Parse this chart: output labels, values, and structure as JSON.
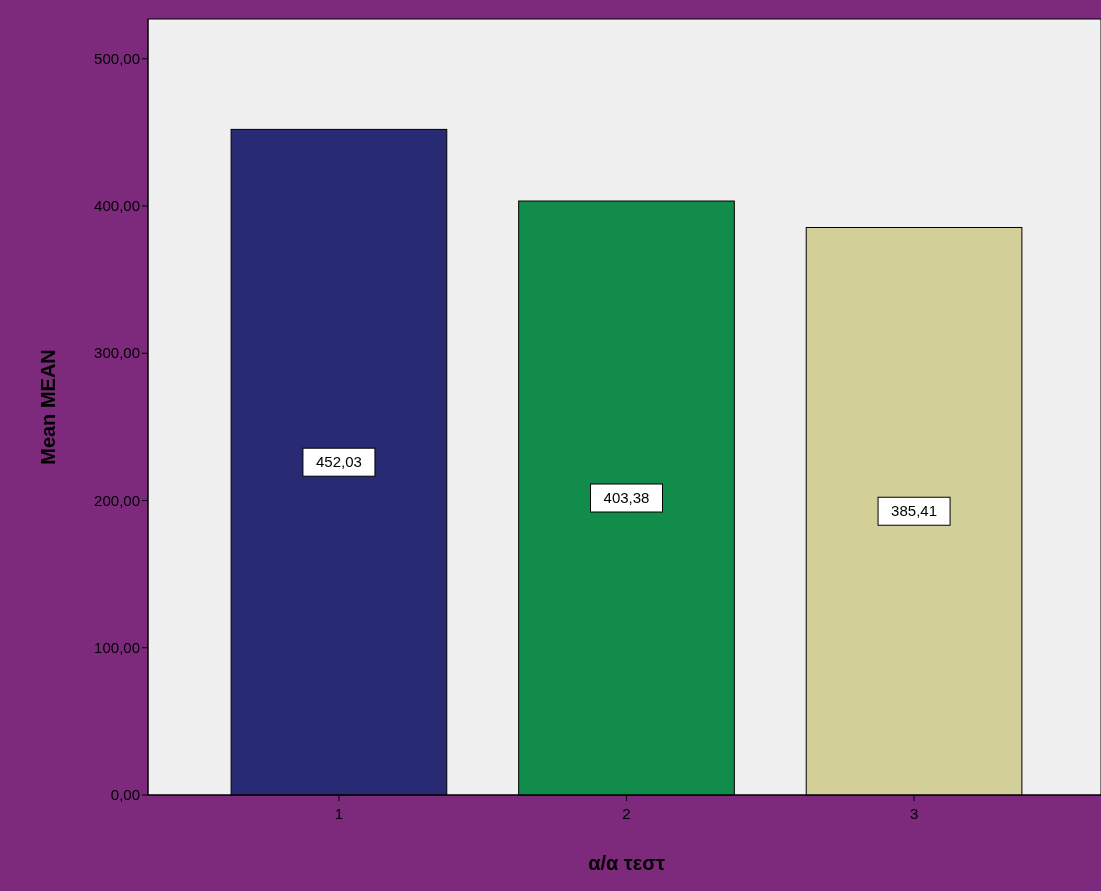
{
  "chart_data": {
    "type": "bar",
    "xlabel": "α/α τεστ",
    "ylabel": "Mean MEAN",
    "categories": [
      "1",
      "2",
      "3"
    ],
    "values": [
      452.03,
      403.38,
      385.41
    ],
    "colors": [
      "#282a73",
      "#118c4a",
      "#d3cf98"
    ],
    "value_labels": [
      "452,03",
      "403,38",
      "385,41"
    ],
    "ylim": [
      0,
      527
    ],
    "yticks": [
      {
        "value": 0,
        "label": "0,00"
      },
      {
        "value": 100,
        "label": "100,00"
      },
      {
        "value": 200,
        "label": "200,00"
      },
      {
        "value": 300,
        "label": "300,00"
      },
      {
        "value": 400,
        "label": "400,00"
      },
      {
        "value": 500,
        "label": "500,00"
      }
    ],
    "grid": false
  }
}
